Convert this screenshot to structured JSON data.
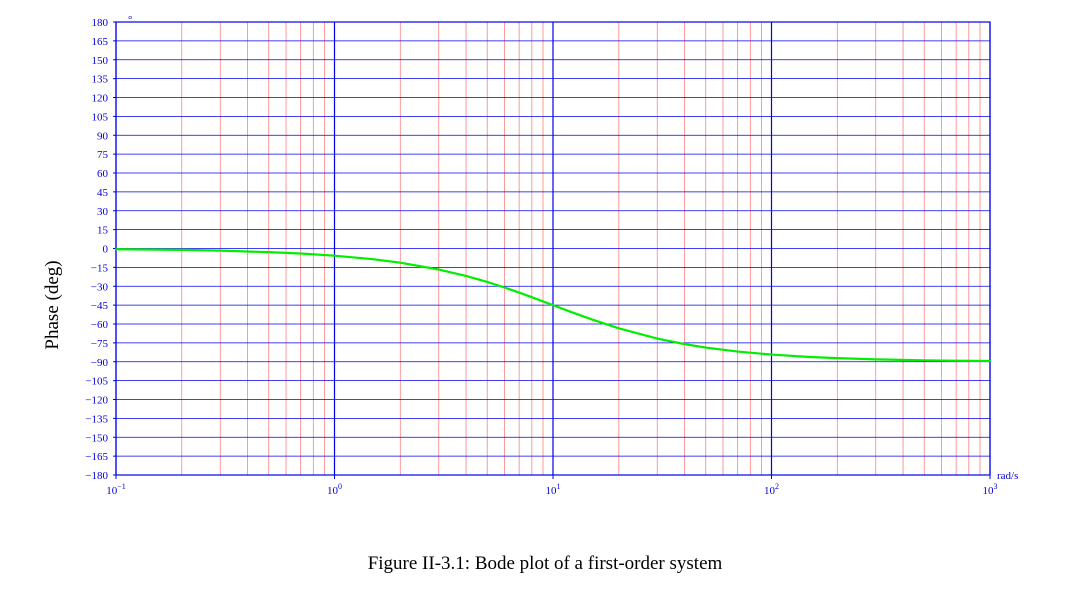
{
  "chart_data": {
    "type": "line",
    "title": "",
    "xlabel": "",
    "ylabel": "Phase (deg)",
    "x_unit_label": "rad/s",
    "y_degree_mark": "°",
    "x_scale": "log",
    "xlim": [
      0.1,
      1000
    ],
    "ylim": [
      -180,
      180
    ],
    "grid": true,
    "x_tick_labels": [
      {
        "base": "10",
        "exp": "−1",
        "value": 0.1
      },
      {
        "base": "10",
        "exp": "0",
        "value": 1
      },
      {
        "base": "10",
        "exp": "1",
        "value": 10
      },
      {
        "base": "10",
        "exp": "2",
        "value": 100
      },
      {
        "base": "10",
        "exp": "3",
        "value": 1000
      }
    ],
    "y_ticks": [
      180,
      165,
      150,
      135,
      120,
      105,
      90,
      75,
      60,
      45,
      30,
      15,
      0,
      -15,
      -30,
      -45,
      -60,
      -75,
      -90,
      -105,
      -120,
      -135,
      -150,
      -165,
      -180
    ],
    "y_tick_labels": [
      "180",
      "165",
      "150",
      "135",
      "120",
      "105",
      "90",
      "75",
      "60",
      "45",
      "30",
      "15",
      "0",
      "−15",
      "−30",
      "−45",
      "−60",
      "−75",
      "−90",
      "−105",
      "−120",
      "−135",
      "−150",
      "−165",
      "−180"
    ],
    "series": [
      {
        "color": "#00ee00",
        "x": [
          0.1,
          0.2,
          0.3,
          0.5,
          0.7,
          1,
          1.5,
          2,
          3,
          4,
          5,
          6,
          7,
          8,
          10,
          12,
          15,
          20,
          30,
          40,
          50,
          70,
          100,
          150,
          200,
          300,
          500,
          700,
          1000
        ],
        "y": [
          -0.6,
          -1.1,
          -1.7,
          -2.9,
          -4.0,
          -5.7,
          -8.5,
          -11.3,
          -16.7,
          -21.8,
          -26.6,
          -31.0,
          -35.0,
          -38.7,
          -45.0,
          -50.2,
          -56.3,
          -63.4,
          -71.6,
          -76.0,
          -78.7,
          -81.9,
          -84.3,
          -86.2,
          -87.1,
          -88.1,
          -88.9,
          -89.2,
          -89.4
        ]
      }
    ],
    "colors": {
      "major_grid": "#0000ee",
      "minor_grid": "#ff8080",
      "tick_text": "#0000dd",
      "curve": "#00ee00"
    }
  },
  "caption": "Figure II-3.1: Bode plot of a first-order system"
}
